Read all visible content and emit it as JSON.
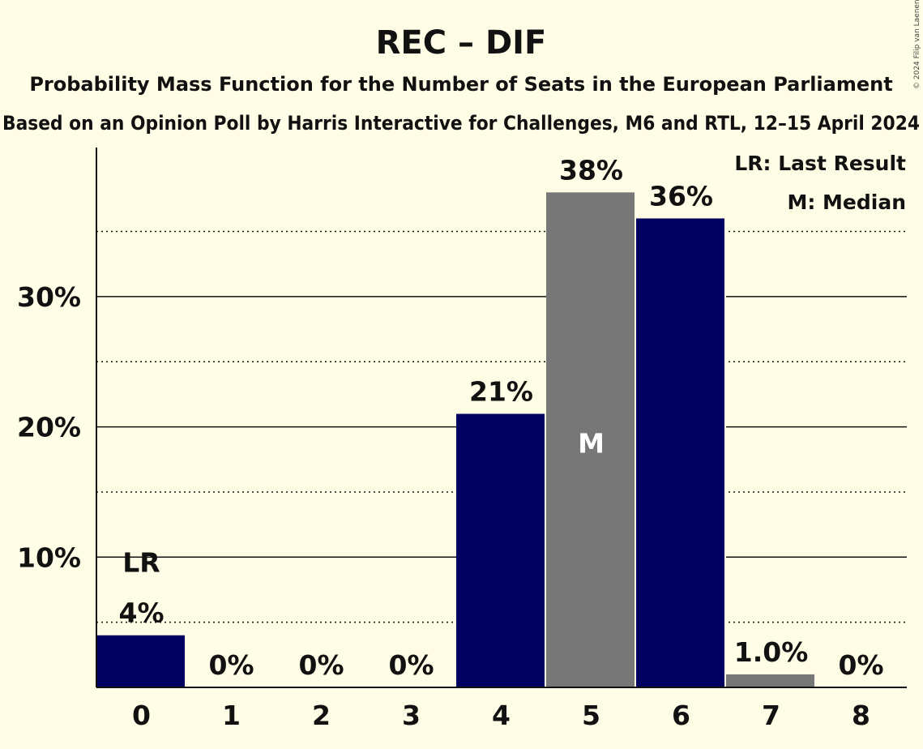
{
  "chart_data": {
    "type": "bar",
    "title": "REC – DIF",
    "subtitle": "Probability Mass Function for the Number of Seats in the European Parliament",
    "subtitle2": "Based on an Opinion Poll by Harris Interactive for Challenges, M6 and RTL, 12–15 April 2024",
    "categories": [
      "0",
      "1",
      "2",
      "3",
      "4",
      "5",
      "6",
      "7",
      "8"
    ],
    "values": [
      4,
      0,
      0,
      0,
      21,
      38,
      36,
      1.0,
      0
    ],
    "value_labels": [
      "4%",
      "0%",
      "0%",
      "0%",
      "21%",
      "38%",
      "36%",
      "1.0%",
      "0%"
    ],
    "bar_colors": [
      "#000060",
      "#000060",
      "#000060",
      "#000060",
      "#000060",
      "#777777",
      "#000060",
      "#777777",
      "#777777"
    ],
    "last_result_index": 0,
    "last_result_mark": "LR",
    "median_index": 5,
    "median_mark": "M",
    "y_ticks": [
      10,
      20,
      30
    ],
    "y_tick_labels": [
      "10%",
      "20%",
      "30%"
    ],
    "y_minor_ticks": [
      5,
      15,
      25,
      35
    ],
    "ylim": [
      0,
      41
    ],
    "legend": {
      "placement": "top-right",
      "items": [
        "LR: Last Result",
        "M: Median"
      ]
    },
    "copyright": "© 2024 Filip van Laenen",
    "colors": {
      "background": "#fffde5",
      "primary_bar": "#000060",
      "secondary_bar": "#777777",
      "text": "#111111"
    }
  }
}
